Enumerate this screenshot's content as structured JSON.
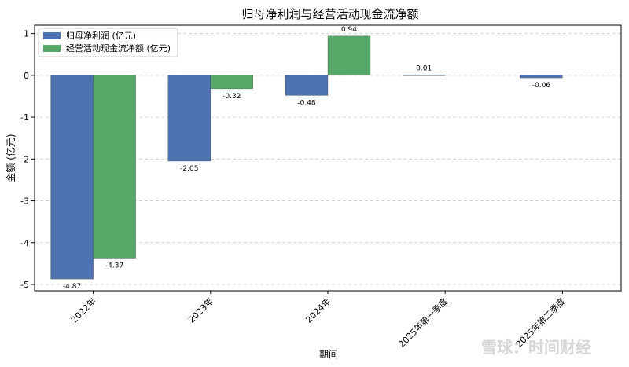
{
  "chart_data": {
    "type": "bar",
    "title": "归母净利润与经营活动现金流净额",
    "xlabel": "期间",
    "ylabel": "金额 (亿元)",
    "categories": [
      "2022年",
      "2023年",
      "2024年",
      "2025年第一季度",
      "2025年第二季度"
    ],
    "series": [
      {
        "name": "归母净利润 (亿元)",
        "color": "#4c72b0",
        "values": [
          -4.87,
          -2.05,
          -0.48,
          0.01,
          -0.06
        ]
      },
      {
        "name": "经营活动现金流净额 (亿元)",
        "color": "#55a868",
        "values": [
          -4.37,
          -0.32,
          0.94,
          null,
          null
        ]
      }
    ],
    "data_labels": {
      "series0": [
        "-4.87",
        "-2.05",
        "-0.48",
        "0.01",
        "-0.06"
      ],
      "series1": [
        "-4.37",
        "-0.32",
        "0.94",
        null,
        null
      ]
    },
    "yticks": [
      1,
      0,
      -1,
      -2,
      -3,
      -4,
      -5
    ],
    "ylim": [
      -5.15,
      1.2
    ],
    "grid": true,
    "legend": "upper-left"
  },
  "watermark": {
    "text": "雪球：时间财经"
  }
}
